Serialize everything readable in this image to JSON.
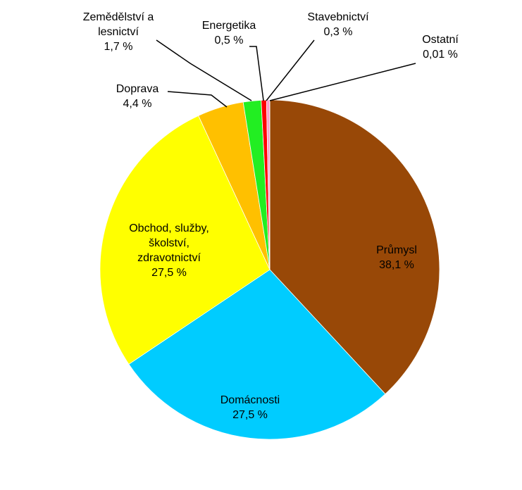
{
  "chart_data": {
    "type": "pie",
    "categories": [
      "Průmysl",
      "Domácnosti",
      "Obchod, služby, školství, zdravotnictví",
      "Doprava",
      "Zemědělství a lesnictví",
      "Energetika",
      "Stavebnictví",
      "Ostatní"
    ],
    "values": [
      38.1,
      27.5,
      27.5,
      4.4,
      1.7,
      0.5,
      0.3,
      0.01
    ],
    "value_labels": [
      "38,1 %",
      "27,5 %",
      "27,5 %",
      "4,4 %",
      "1,7 %",
      "0,5 %",
      "0,3 %",
      "0,01 %"
    ],
    "colors": [
      "#984807",
      "#00ccff",
      "#ffff00",
      "#ffc000",
      "#22ee22",
      "#ff0000",
      "#ff99cc",
      "#9966cc"
    ]
  }
}
